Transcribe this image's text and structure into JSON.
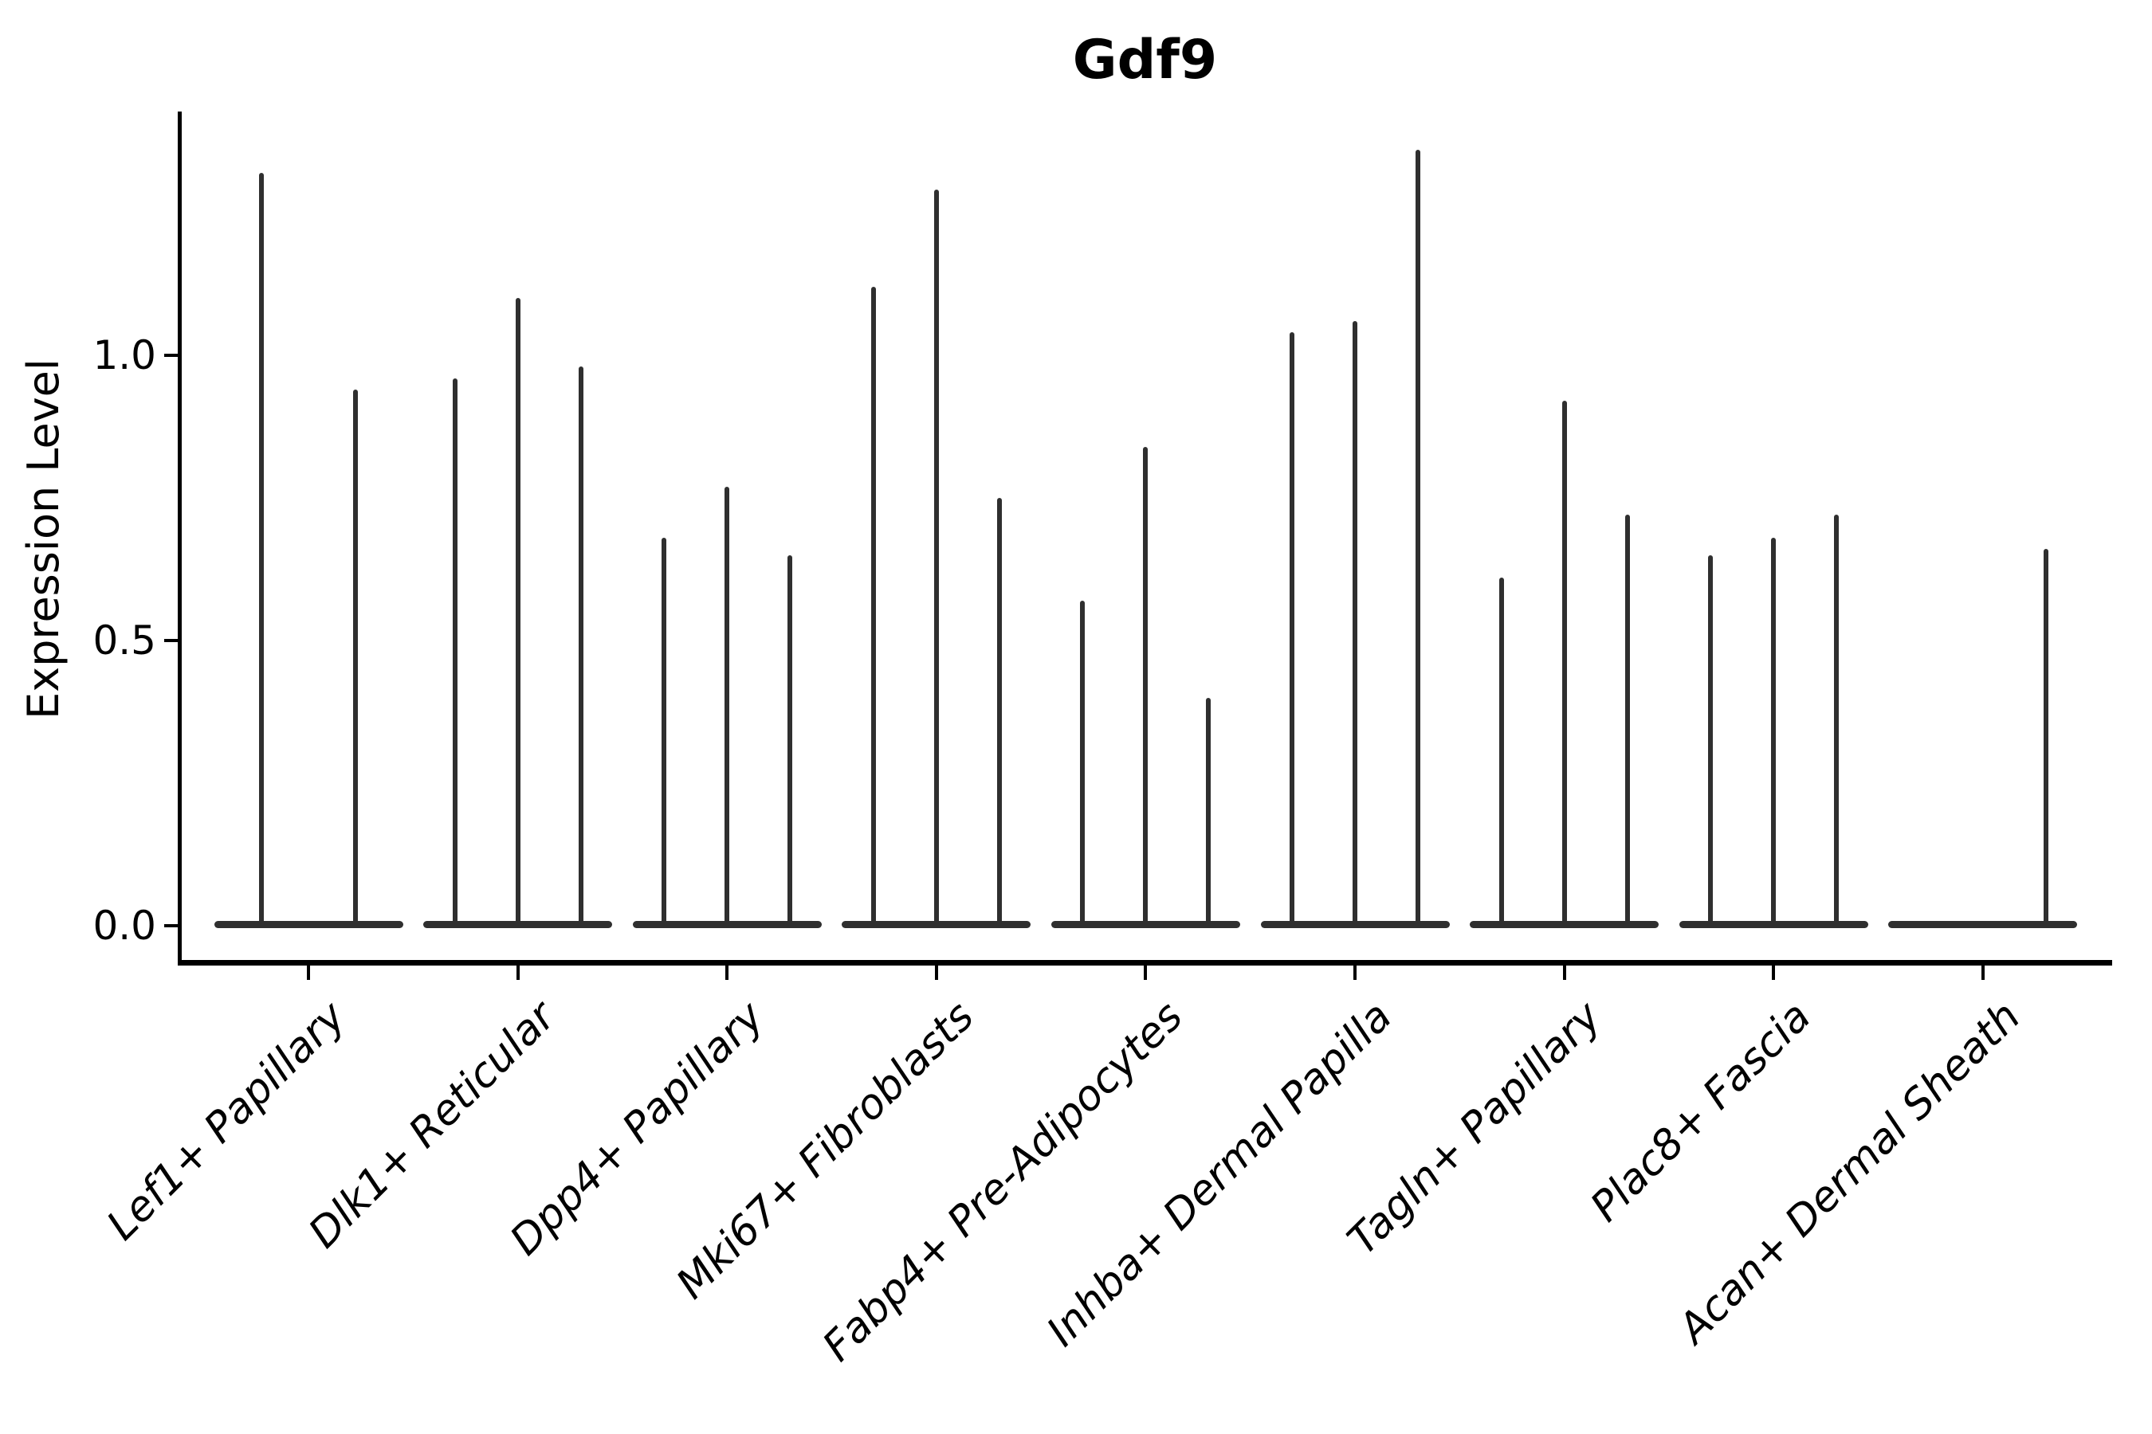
{
  "figure": {
    "title": "Gdf9",
    "ylabel": "Expression Level",
    "background_color": "#ffffff",
    "axis_color": "#000000",
    "violin_color": "#2f2f2f"
  },
  "chart_data": {
    "type": "violin",
    "title": "Gdf9",
    "xlabel": "",
    "ylabel": "Expression Level",
    "ylim": [
      0,
      1.43
    ],
    "yticks": [
      0.0,
      0.5,
      1.0
    ],
    "ytick_labels": [
      "0.0",
      "0.5",
      "1.0"
    ],
    "grid": false,
    "legend": "none",
    "categories": [
      "Lef1+ Papillary",
      "Dlk1+ Reticular",
      "Dpp4+ Papillary",
      "Mki67+ Fibroblasts",
      "Fabp4+ Pre-Adipocytes",
      "Inhba+ Dermal Papilla",
      "Tagln+ Papillary",
      "Plac8+ Fascia",
      "Acan+ Dermal Sheath"
    ],
    "description": "Split violin plot; every violin is collapsed at 0 with a thin spike up to its maximum expression value",
    "groups": [
      {
        "label": "Lef1+ Papillary",
        "slots": 2,
        "spikes": [
          {
            "slot": 0,
            "max": 1.32
          },
          {
            "slot": 1,
            "max": 0.94
          }
        ]
      },
      {
        "label": "Dlk1+ Reticular",
        "slots": 3,
        "spikes": [
          {
            "slot": 0,
            "max": 0.96
          },
          {
            "slot": 1,
            "max": 1.1
          },
          {
            "slot": 2,
            "max": 0.98
          }
        ]
      },
      {
        "label": "Dpp4+ Papillary",
        "slots": 3,
        "spikes": [
          {
            "slot": 0,
            "max": 0.68
          },
          {
            "slot": 1,
            "max": 0.77
          },
          {
            "slot": 2,
            "max": 0.65
          }
        ]
      },
      {
        "label": "Mki67+ Fibroblasts",
        "slots": 3,
        "spikes": [
          {
            "slot": 0,
            "max": 1.12
          },
          {
            "slot": 1,
            "max": 1.29
          },
          {
            "slot": 2,
            "max": 0.75
          }
        ]
      },
      {
        "label": "Fabp4+ Pre-Adipocytes",
        "slots": 3,
        "spikes": [
          {
            "slot": 0,
            "max": 0.57
          },
          {
            "slot": 1,
            "max": 0.84
          },
          {
            "slot": 2,
            "max": 0.4
          }
        ]
      },
      {
        "label": "Inhba+ Dermal Papilla",
        "slots": 3,
        "spikes": [
          {
            "slot": 0,
            "max": 1.04
          },
          {
            "slot": 1,
            "max": 1.06
          },
          {
            "slot": 2,
            "max": 1.36
          }
        ]
      },
      {
        "label": "Tagln+ Papillary",
        "slots": 3,
        "spikes": [
          {
            "slot": 0,
            "max": 0.61
          },
          {
            "slot": 1,
            "max": 0.92
          },
          {
            "slot": 2,
            "max": 0.72
          }
        ]
      },
      {
        "label": "Plac8+ Fascia",
        "slots": 3,
        "spikes": [
          {
            "slot": 0,
            "max": 0.65
          },
          {
            "slot": 1,
            "max": 0.68
          },
          {
            "slot": 2,
            "max": 0.72
          }
        ]
      },
      {
        "label": "Acan+ Dermal Sheath",
        "slots": 3,
        "spikes": [
          {
            "slot": 2,
            "max": 0.66
          }
        ]
      }
    ]
  }
}
